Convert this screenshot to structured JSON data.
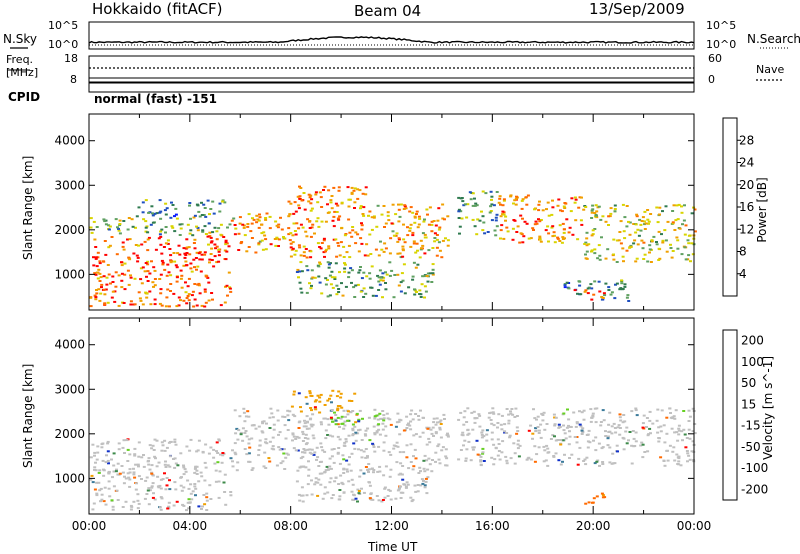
{
  "header": {
    "station": "Hokkaido (fitACF)",
    "beam": "Beam 04",
    "date": "13/Sep/2009"
  },
  "top_panels": {
    "nsky_label": "N.Sky",
    "nsearch_label": "N.Search",
    "nsky_ticks": [
      "10^5",
      "10^0"
    ],
    "nsearch_ticks": [
      "10^5",
      "10^0"
    ],
    "freq_label_1": "Freq.",
    "freq_label_2": "[MHz]",
    "freq_ticks": [
      "18",
      "8"
    ],
    "nave_label": "Nave",
    "nave_ticks": [
      "60",
      "0"
    ],
    "cpid_label": "CPID",
    "cpid_value": "normal (fast) -151"
  },
  "chart_data": [
    {
      "type": "heatmap",
      "name": "power",
      "ylabel": "Slant Range [km]",
      "ylim": [
        200,
        4600
      ],
      "yticks": [
        1000,
        2000,
        3000,
        4000
      ],
      "xlim": [
        0,
        24
      ],
      "colorbar_label": "Power [dB]",
      "colorbar_ticks": [
        4,
        8,
        12,
        16,
        20,
        24,
        28
      ],
      "colorbar_range": [
        0,
        32
      ],
      "colorbar_colors": [
        "#0a1aff",
        "#1f4fbf",
        "#2f7a4f",
        "#5fa060",
        "#d8d400",
        "#f0a000",
        "#ff6a00",
        "#ff0000"
      ],
      "regions": [
        {
          "t0": 0.0,
          "t1": 5.6,
          "r0": 300,
          "r1": 1900,
          "level": 26
        },
        {
          "t0": 0.0,
          "t1": 5.6,
          "r0": 1900,
          "r1": 2300,
          "level": 14
        },
        {
          "t0": 1.8,
          "t1": 5.4,
          "r0": 2300,
          "r1": 2700,
          "level": 10
        },
        {
          "t0": 5.6,
          "t1": 7.8,
          "r0": 1500,
          "r1": 2400,
          "level": 22
        },
        {
          "t0": 7.8,
          "t1": 11.0,
          "r0": 1400,
          "r1": 3000,
          "level": 24
        },
        {
          "t0": 11.0,
          "t1": 14.2,
          "r0": 1400,
          "r1": 2600,
          "level": 22
        },
        {
          "t0": 14.6,
          "t1": 16.2,
          "r0": 1900,
          "r1": 2900,
          "level": 12
        },
        {
          "t0": 16.2,
          "t1": 19.6,
          "r0": 1700,
          "r1": 2800,
          "level": 24
        },
        {
          "t0": 19.6,
          "t1": 24.0,
          "r0": 1300,
          "r1": 2600,
          "level": 18
        },
        {
          "t0": 8.2,
          "t1": 13.6,
          "r0": 500,
          "r1": 1300,
          "level": 14
        },
        {
          "t0": 18.8,
          "t1": 21.4,
          "r0": 400,
          "r1": 900,
          "level": 10
        },
        {
          "t0": 19.2,
          "t1": 20.4,
          "r0": 450,
          "r1": 700,
          "level": 26
        }
      ]
    },
    {
      "type": "heatmap",
      "name": "velocity",
      "ylabel": "Slant Range [km]",
      "ylim": [
        200,
        4600
      ],
      "yticks": [
        1000,
        2000,
        3000,
        4000
      ],
      "xlim": [
        0,
        24
      ],
      "xticks": [
        "00:00",
        "04:00",
        "08:00",
        "12:00",
        "16:00",
        "20:00",
        "00:00"
      ],
      "xlabel": "Time UT",
      "colorbar_label": "Velocity [m s^-1]",
      "colorbar_ticks": [
        200,
        100,
        50,
        15,
        -15,
        -50,
        -100,
        -200
      ],
      "colorbar_colors": [
        "#1030c8",
        "#3a7a9a",
        "#3d8a4a",
        "#66d022",
        "#c0c0c0",
        "#f0a000",
        "#ff6a00",
        "#ff0000"
      ],
      "regions": [
        {
          "t0": 0.0,
          "t1": 5.6,
          "r0": 300,
          "r1": 1900,
          "level": "-15..15"
        },
        {
          "t0": 5.6,
          "t1": 14.2,
          "r0": 1200,
          "r1": 2600,
          "level": "-15..15"
        },
        {
          "t0": 8.0,
          "t1": 10.5,
          "r0": 2500,
          "r1": 3000,
          "level": "-15..-50"
        },
        {
          "t0": 9.5,
          "t1": 11.8,
          "r0": 2200,
          "r1": 2500,
          "level": "15..50"
        },
        {
          "t0": 14.6,
          "t1": 24.0,
          "r0": 1300,
          "r1": 2600,
          "level": "-15..15"
        },
        {
          "t0": 8.2,
          "t1": 13.6,
          "r0": 500,
          "r1": 1300,
          "level": "-15..15"
        },
        {
          "t0": 19.2,
          "t1": 20.4,
          "r0": 450,
          "r1": 700,
          "level": "-50..-100"
        }
      ]
    }
  ],
  "colors": {
    "axis": "#000000",
    "background": "#ffffff"
  }
}
